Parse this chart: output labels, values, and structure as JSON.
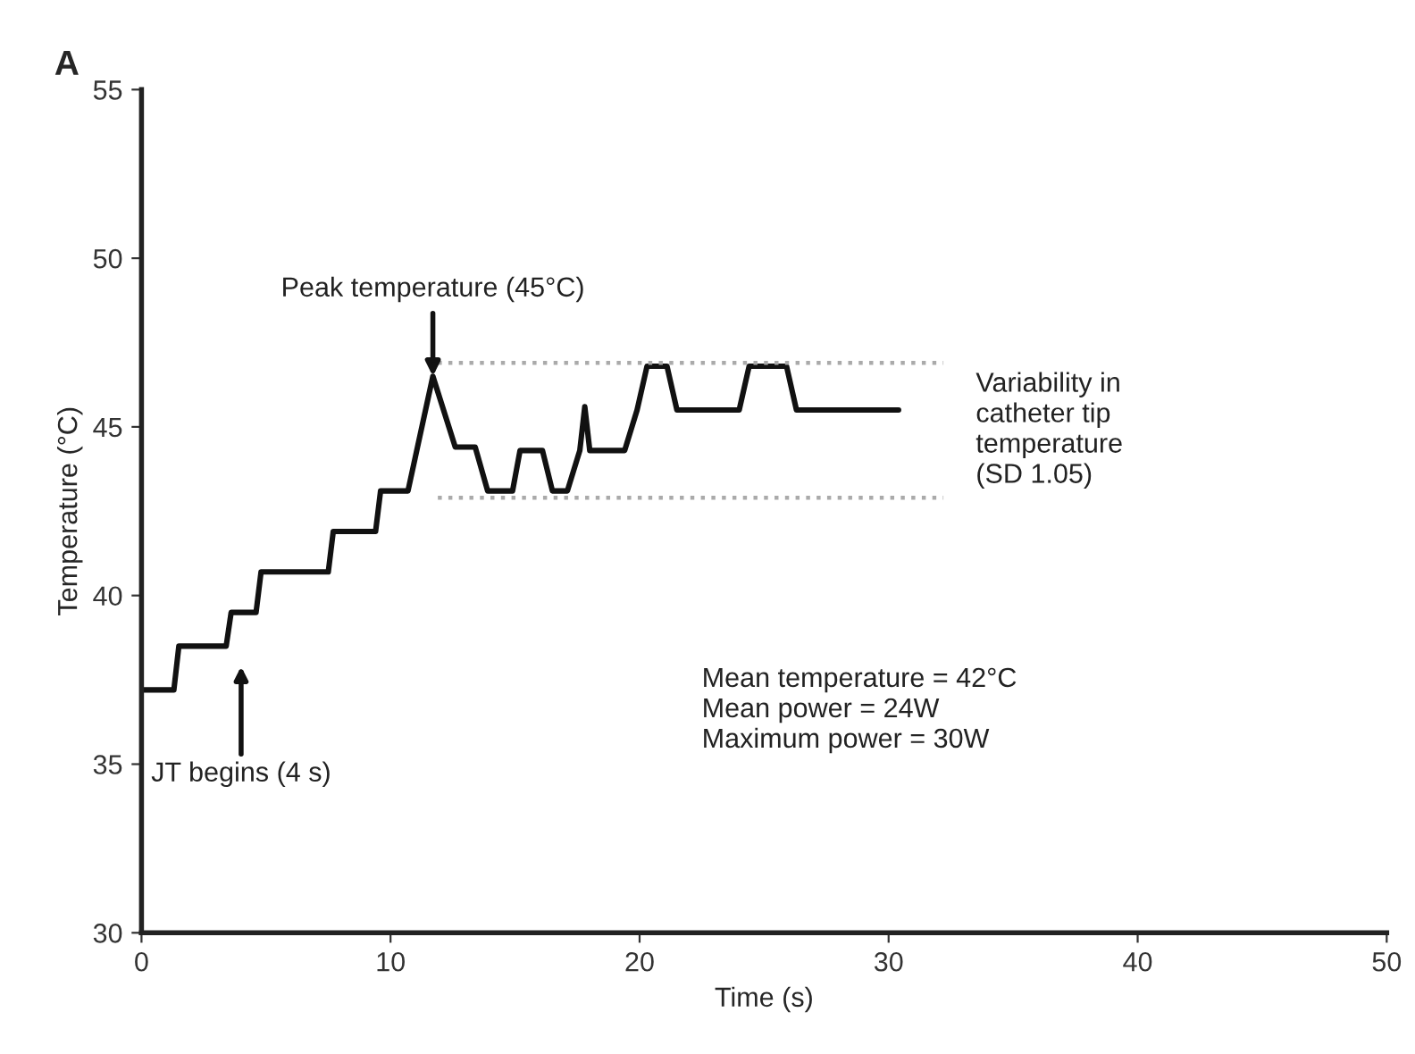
{
  "chart_data": {
    "type": "line",
    "title": "A",
    "xlabel": "Time (s)",
    "ylabel": "Temperature (°C)",
    "xlim": [
      0,
      50
    ],
    "xticks": [
      0,
      10,
      20,
      30,
      40,
      50
    ],
    "ylim": [
      30,
      55
    ],
    "yticks": [
      30,
      35,
      40,
      45,
      50,
      55
    ],
    "grid": false,
    "legend": false,
    "series": [
      {
        "color": "#111111",
        "line_style": "solid",
        "x": [
          0,
          1.3,
          1.5,
          3.4,
          3.6,
          4.6,
          4.8,
          7.5,
          7.7,
          9.4,
          9.6,
          10.7,
          11.7,
          12.6,
          13.4,
          13.9,
          14.9,
          15.2,
          16.1,
          16.5,
          17.1,
          17.6,
          17.8,
          18.0,
          19.4,
          19.9,
          20.3,
          21.1,
          21.5,
          24.0,
          24.4,
          25.9,
          26.3,
          30.4
        ],
        "values": [
          37.2,
          37.2,
          38.5,
          38.5,
          39.5,
          39.5,
          40.7,
          40.7,
          41.9,
          41.9,
          43.1,
          43.1,
          46.5,
          44.4,
          44.4,
          43.1,
          43.1,
          44.3,
          44.3,
          43.1,
          43.1,
          44.3,
          45.6,
          44.3,
          44.3,
          45.5,
          46.8,
          46.8,
          45.5,
          45.5,
          46.8,
          46.8,
          45.5,
          45.5
        ]
      },
      {
        "color": "#aaaaaa",
        "line_style": "dotted",
        "x": [
          11.9,
          32.2
        ],
        "values": [
          46.9,
          46.9
        ]
      },
      {
        "color": "#aaaaaa",
        "line_style": "dotted",
        "x": [
          11.9,
          32.2
        ],
        "values": [
          42.9,
          42.9
        ]
      }
    ],
    "annotations": [
      {
        "text": "Peak temperature (45°C)",
        "x": 11.7,
        "y": 46.5
      },
      "JT begins (4 s)",
      "Variability in\ncatheter tip\ntemperature\n(SD 1.05)",
      "Mean temperature = 42°C\nMean power = 24W\nMaximum power = 30W"
    ]
  }
}
